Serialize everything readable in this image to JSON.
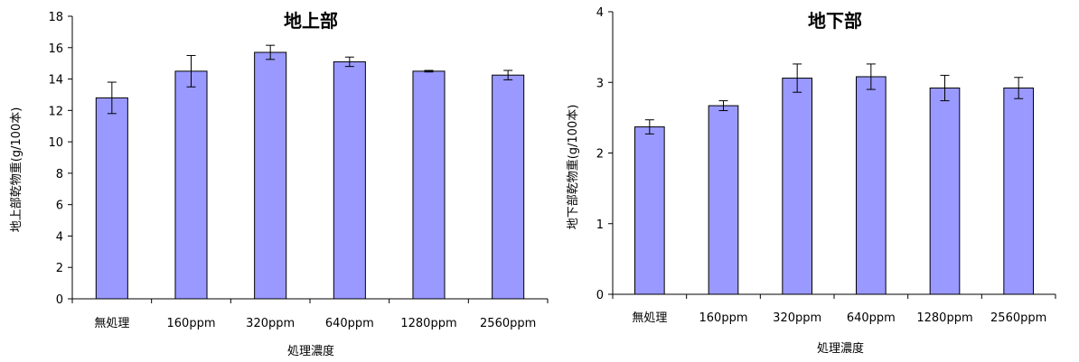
{
  "chart_data": [
    {
      "type": "bar",
      "title": "地上部",
      "xlabel": "処理濃度",
      "ylabel": "地上部乾物重(g/100本)",
      "categories": [
        "無処理",
        "160ppm",
        "320ppm",
        "640ppm",
        "1280ppm",
        "2560ppm"
      ],
      "values": [
        12.8,
        14.5,
        15.7,
        15.1,
        14.5,
        14.25
      ],
      "error": [
        1.0,
        1.0,
        0.45,
        0.3,
        0.05,
        0.3
      ],
      "ylim": [
        0,
        18
      ],
      "yticks": [
        "0",
        "2",
        "4",
        "6",
        "8",
        "10",
        "12",
        "14",
        "16",
        "18"
      ],
      "grid": false,
      "bar_color": "#9999ff",
      "error_bars": true
    },
    {
      "type": "bar",
      "title": "地下部",
      "xlabel": "処理濃度",
      "ylabel": "地下部乾物重(g/100本)",
      "categories": [
        "無処理",
        "160ppm",
        "320ppm",
        "640ppm",
        "1280ppm",
        "2560ppm"
      ],
      "values": [
        2.37,
        2.67,
        3.06,
        3.08,
        2.92,
        2.92
      ],
      "error": [
        0.1,
        0.07,
        0.2,
        0.18,
        0.18,
        0.15
      ],
      "ylim": [
        0,
        4
      ],
      "yticks": [
        "0",
        "1",
        "2",
        "3",
        "4"
      ],
      "grid": false,
      "bar_color": "#9999ff",
      "error_bars": true
    }
  ]
}
